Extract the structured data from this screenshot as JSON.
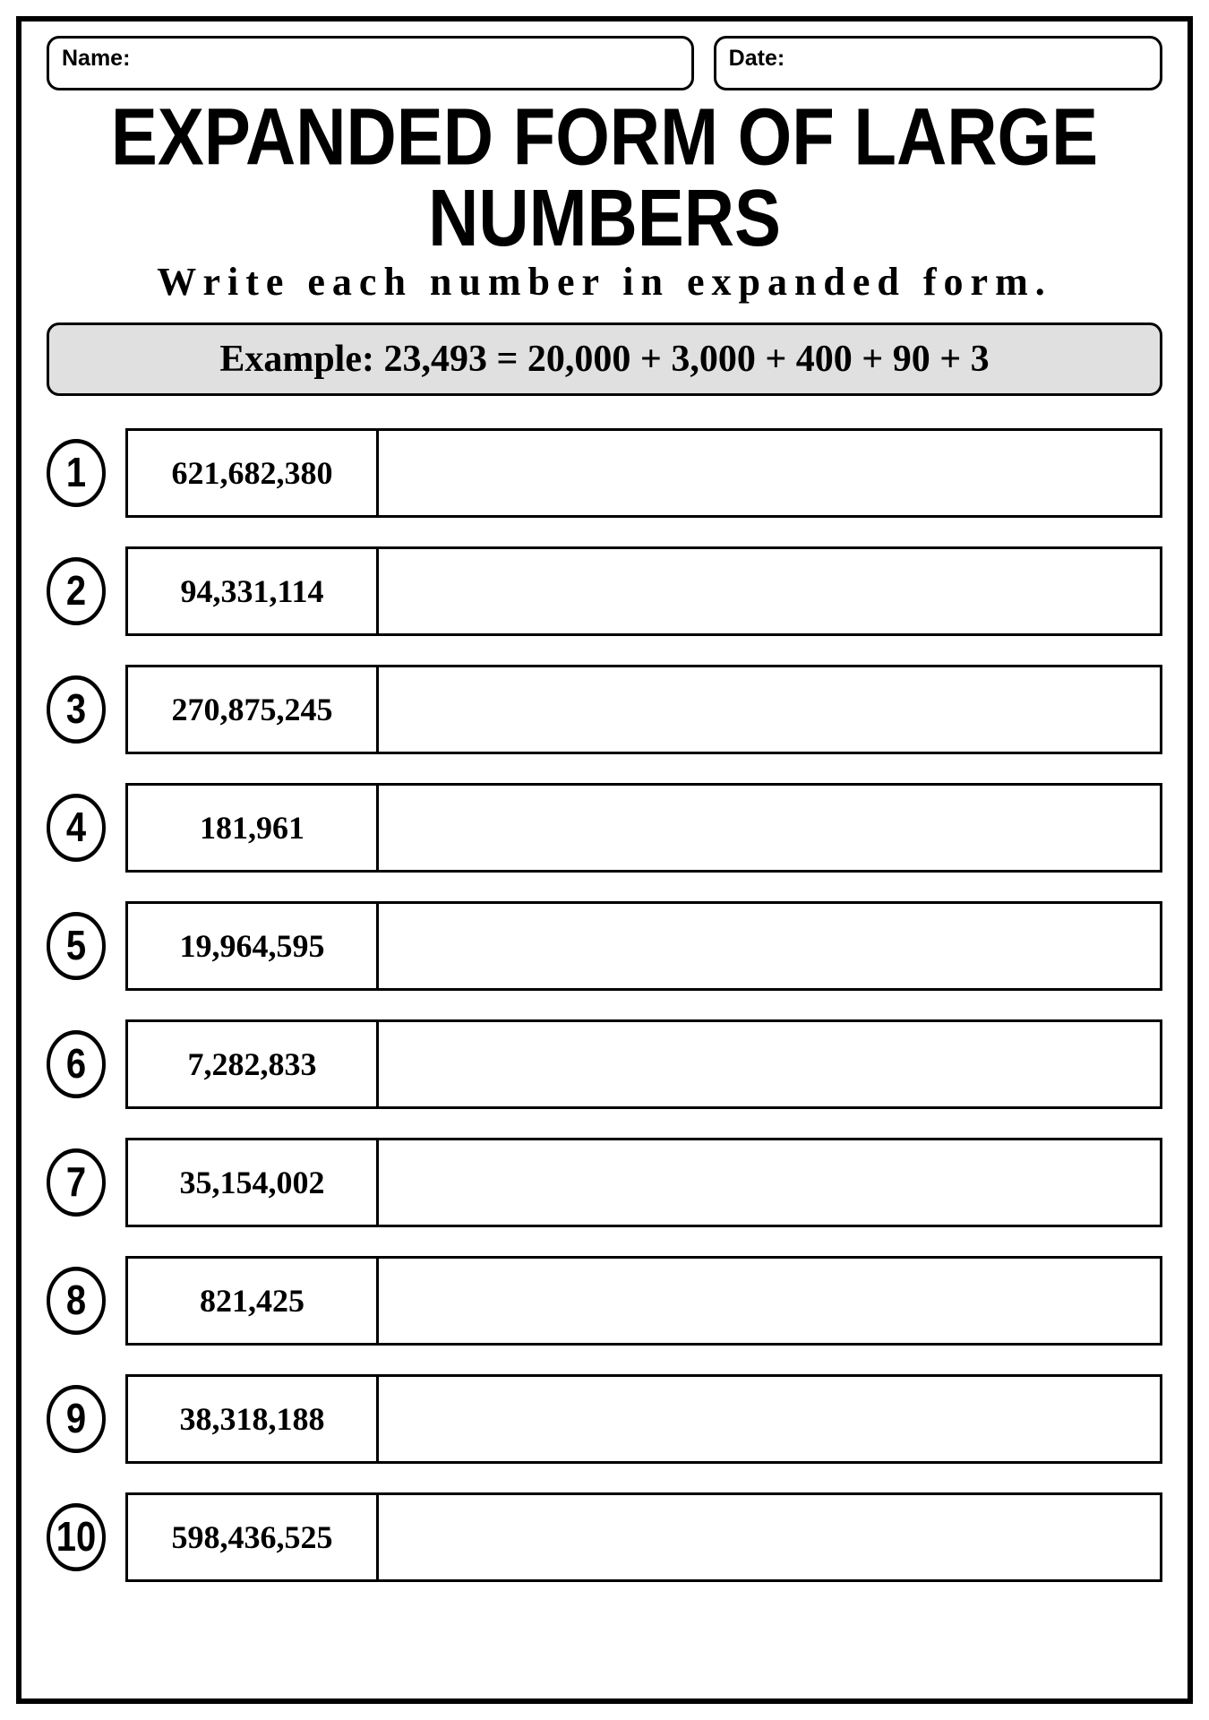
{
  "header": {
    "name_label": "Name:",
    "date_label": "Date:"
  },
  "title": "EXPANDED FORM OF LARGE NUMBERS",
  "subtitle": "Write each number in expanded form.",
  "example": "Example: 23,493 = 20,000 + 3,000 + 400 + 90 + 3",
  "problems": [
    {
      "num": "1",
      "value": "621,682,380"
    },
    {
      "num": "2",
      "value": "94,331,114"
    },
    {
      "num": "3",
      "value": "270,875,245"
    },
    {
      "num": "4",
      "value": "181,961"
    },
    {
      "num": "5",
      "value": "19,964,595"
    },
    {
      "num": "6",
      "value": "7,282,833"
    },
    {
      "num": "7",
      "value": "35,154,002"
    },
    {
      "num": "8",
      "value": "821,425"
    },
    {
      "num": "9",
      "value": "38,318,188"
    },
    {
      "num": "10",
      "value": "598,436,525"
    }
  ],
  "styling": {
    "page_border_width": 6,
    "page_border_color": "#000000",
    "field_border_radius": 14,
    "field_border_width": 3,
    "example_bg_color": "#e0e0e0",
    "example_border_radius": 14,
    "title_fontsize": 82,
    "subtitle_fontsize": 44,
    "subtitle_letter_spacing": 8,
    "example_fontsize": 42,
    "circle_diameter": 66,
    "circle_border_width": 4,
    "circle_fontsize": 40,
    "answer_box_height": 100,
    "answer_box_border_width": 3,
    "number_cell_width": 280,
    "number_cell_fontsize": 36,
    "row_gap": 32,
    "background_color": "#ffffff",
    "text_color": "#000000"
  }
}
